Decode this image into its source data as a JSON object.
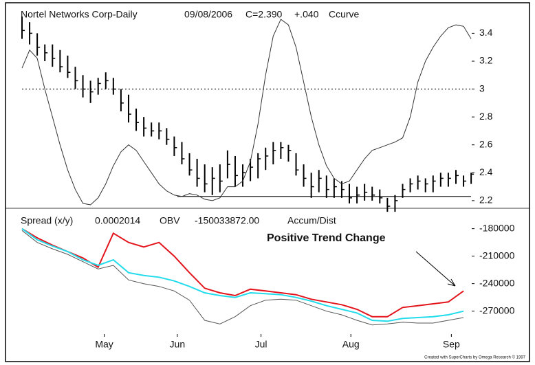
{
  "chart_data": [
    {
      "type": "ohlc",
      "title": "Nortel Networks Corp-Daily",
      "date": "09/08/2006",
      "last": "C=2.390",
      "change": "+.040",
      "change_color": "#2ec82e",
      "indicator": "Ccurve",
      "high": [
        3.52,
        3.48,
        3.4,
        3.32,
        3.32,
        3.28,
        3.24,
        3.16,
        3.1,
        3.06,
        3.08,
        3.12,
        3.08,
        3.0,
        2.96,
        2.86,
        2.8,
        2.76,
        2.76,
        2.72,
        2.66,
        2.62,
        2.54,
        2.5,
        2.46,
        2.44,
        2.46,
        2.56,
        2.52,
        2.46,
        2.5,
        2.54,
        2.58,
        2.62,
        2.62,
        2.6,
        2.54,
        2.46,
        2.4,
        2.42,
        2.38,
        2.36,
        2.34,
        2.32,
        2.3,
        2.32,
        2.3,
        2.28,
        2.22,
        2.24,
        2.32,
        2.36,
        2.38,
        2.36,
        2.38,
        2.4,
        2.4,
        2.42,
        2.38,
        2.4
      ],
      "low": [
        3.36,
        3.32,
        3.24,
        3.2,
        3.16,
        3.12,
        3.08,
        3.0,
        2.94,
        2.9,
        2.96,
        3.0,
        2.96,
        2.84,
        2.76,
        2.7,
        2.66,
        2.66,
        2.64,
        2.6,
        2.52,
        2.46,
        2.38,
        2.3,
        2.26,
        2.24,
        2.26,
        2.36,
        2.3,
        2.3,
        2.34,
        2.36,
        2.42,
        2.46,
        2.5,
        2.48,
        2.38,
        2.3,
        2.22,
        2.26,
        2.22,
        2.22,
        2.22,
        2.18,
        2.18,
        2.2,
        2.2,
        2.18,
        2.12,
        2.12,
        2.22,
        2.26,
        2.28,
        2.26,
        2.26,
        2.3,
        2.3,
        2.32,
        2.3,
        2.32
      ],
      "close": [
        3.42,
        3.4,
        3.3,
        3.26,
        3.22,
        3.16,
        3.12,
        3.06,
        3.0,
        2.98,
        3.04,
        3.06,
        3.0,
        2.9,
        2.82,
        2.76,
        2.72,
        2.7,
        2.7,
        2.64,
        2.58,
        2.5,
        2.42,
        2.36,
        2.32,
        2.36,
        2.34,
        2.46,
        2.38,
        2.4,
        2.44,
        2.5,
        2.52,
        2.56,
        2.58,
        2.56,
        2.42,
        2.36,
        2.3,
        2.36,
        2.28,
        2.3,
        2.28,
        2.22,
        2.24,
        2.26,
        2.24,
        2.22,
        2.16,
        2.2,
        2.28,
        2.32,
        2.34,
        2.32,
        2.34,
        2.36,
        2.36,
        2.38,
        2.34,
        2.39
      ],
      "color": "#000000",
      "curve": {
        "color": "#333333",
        "values": [
          3.15,
          3.28,
          3.22,
          3.0,
          2.8,
          2.6,
          2.42,
          2.28,
          2.18,
          2.17,
          2.22,
          2.32,
          2.45,
          2.55,
          2.6,
          2.56,
          2.48,
          2.4,
          2.32,
          2.27,
          2.24,
          2.23,
          2.25,
          2.24,
          2.21,
          2.2,
          2.22,
          2.3,
          2.3,
          2.34,
          2.48,
          2.75,
          3.1,
          3.38,
          3.5,
          3.46,
          3.3,
          3.05,
          2.8,
          2.6,
          2.45,
          2.36,
          2.32,
          2.34,
          2.42,
          2.5,
          2.56,
          2.58,
          2.6,
          2.62,
          2.65,
          2.8,
          3.05,
          3.2,
          3.3,
          3.38,
          3.44,
          3.46,
          3.45,
          3.36
        ]
      },
      "hlines": [
        {
          "value": 3,
          "style": "dotted",
          "start": 0
        },
        {
          "value": 2.23,
          "style": "solid",
          "start": 20.4
        }
      ],
      "ylim": [
        2.16,
        3.54
      ],
      "yticks": [
        2.2,
        2.4,
        2.6,
        2.8,
        3,
        3.2,
        3.4
      ]
    },
    {
      "type": "line",
      "labels": [
        "Spread (x/y)",
        "0.0002014",
        "OBV",
        "-150033872.00",
        "Accum/Dist"
      ],
      "label_colors": [
        "#111111",
        "#22dcec",
        "#111111",
        "#111111",
        "#111111"
      ],
      "annotation": "Positive Trend Change",
      "footer": "Created with SuperCharts by Omega Research © 1997",
      "x": [
        0,
        2,
        4,
        6,
        8,
        10,
        12,
        14,
        16,
        18,
        20,
        22,
        24,
        26,
        28,
        30,
        32,
        34,
        36,
        38,
        40,
        42,
        44,
        46,
        48,
        50,
        52,
        54,
        56,
        58
      ],
      "series": [
        {
          "color": "#e3141c",
          "values": [
            -180000,
            -190000,
            -198000,
            -205000,
            -212000,
            -222000,
            -185000,
            -195000,
            -200000,
            -195000,
            -210000,
            -228000,
            -245000,
            -250000,
            -253000,
            -246000,
            -248000,
            -250000,
            -252000,
            -257000,
            -260000,
            -263000,
            -268000,
            -276000,
            -276000,
            -266000,
            -264000,
            -262000,
            -260000,
            -248000
          ]
        },
        {
          "color": "#22dcec",
          "values": [
            -180000,
            -192000,
            -199000,
            -205000,
            -214000,
            -220000,
            -214000,
            -228000,
            -231000,
            -233000,
            -237000,
            -243000,
            -250000,
            -253000,
            -255000,
            -250000,
            -251000,
            -252000,
            -255000,
            -259000,
            -264000,
            -268000,
            -272000,
            -280000,
            -281000,
            -278000,
            -277000,
            -276000,
            -274000,
            -270000
          ]
        },
        {
          "color": "#555555",
          "values": [
            -182000,
            -195000,
            -202000,
            -208000,
            -216000,
            -224000,
            -220000,
            -236000,
            -240000,
            -243000,
            -248000,
            -258000,
            -280000,
            -284000,
            -276000,
            -264000,
            -258000,
            -257000,
            -258000,
            -264000,
            -270000,
            -274000,
            -280000,
            -285000,
            -284000,
            -282000,
            -283000,
            -283000,
            -280000,
            -277000
          ]
        }
      ],
      "ylim": [
        -298000,
        -163000
      ],
      "yticks": [
        -270000,
        -240000,
        -210000,
        -180000
      ],
      "xticks": [
        {
          "value": 10.8,
          "label": "May"
        },
        {
          "value": 20.4,
          "label": "Jun"
        },
        {
          "value": 31.4,
          "label": "Jul"
        },
        {
          "value": 43.2,
          "label": "Aug"
        },
        {
          "value": 56.4,
          "label": "Sep"
        }
      ]
    }
  ]
}
